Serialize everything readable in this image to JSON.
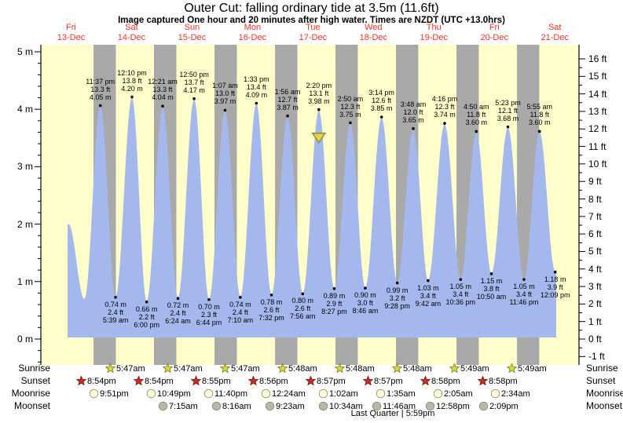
{
  "title": "Outer Cut: falling  ordinary tide at 3.5m (11.6ft)",
  "subtitle": "Image captured One hour and 20 minutes after high water. Times are NZDT (UTC +13.0hrs)",
  "day_labels": [
    {
      "name": "Fri",
      "date": "13-Dec"
    },
    {
      "name": "Sat",
      "date": "14-Dec"
    },
    {
      "name": "Sun",
      "date": "15-Dec"
    },
    {
      "name": "Mon",
      "date": "16-Dec"
    },
    {
      "name": "Tue",
      "date": "17-Dec"
    },
    {
      "name": "Wed",
      "date": "18-Dec"
    },
    {
      "name": "Thu",
      "date": "19-Dec"
    },
    {
      "name": "Fri",
      "date": "20-Dec"
    },
    {
      "name": "Sat",
      "date": "21-Dec"
    }
  ],
  "y_axis": {
    "left_ticks": [
      {
        "v": 5,
        "label": "5 m"
      },
      {
        "v": 4,
        "label": "4 m"
      },
      {
        "v": 3,
        "label": "3 m"
      },
      {
        "v": 2,
        "label": "2 m"
      },
      {
        "v": 1,
        "label": "1 m"
      },
      {
        "v": 0,
        "label": "0 m"
      }
    ],
    "right_ticks": [
      {
        "v": 16,
        "label": "16 ft"
      },
      {
        "v": 15,
        "label": "15 ft"
      },
      {
        "v": 14,
        "label": "14 ft"
      },
      {
        "v": 13,
        "label": "13 ft"
      },
      {
        "v": 12,
        "label": "12 ft"
      },
      {
        "v": 11,
        "label": "11 ft"
      },
      {
        "v": 10,
        "label": "10 ft"
      },
      {
        "v": 9,
        "label": "9 ft"
      },
      {
        "v": 8,
        "label": "8 ft"
      },
      {
        "v": 7,
        "label": "7 ft"
      },
      {
        "v": 6,
        "label": "6 ft"
      },
      {
        "v": 5,
        "label": "5 ft"
      },
      {
        "v": 4,
        "label": "4 ft"
      },
      {
        "v": 3,
        "label": "3 ft"
      },
      {
        "v": 2,
        "label": "2 ft"
      },
      {
        "v": 1,
        "label": "1 ft"
      },
      {
        "v": 0,
        "label": "0 ft"
      },
      {
        "v": -1,
        "label": "-1 ft"
      }
    ]
  },
  "chart_data": {
    "type": "area",
    "title": "Outer Cut: falling  ordinary tide at 3.5m (11.6ft)",
    "ylabel_left_unit": "m",
    "ylabel_right_unit": "ft",
    "ylim_m": [
      -0.45,
      5.1
    ],
    "x_range_days": 9,
    "high_tides": [
      {
        "day": 0,
        "time": "11:37 pm",
        "ft": "13.3",
        "m": "4.05"
      },
      {
        "day": 1,
        "time": "12:10 pm",
        "ft": "13.8",
        "m": "4.20"
      },
      {
        "day": 2,
        "time": "12:21 am",
        "ft": "13.3",
        "m": "4.04"
      },
      {
        "day": 2,
        "time": "12:50 pm",
        "ft": "13.7",
        "m": "4.17"
      },
      {
        "day": 3,
        "time": "1:07 am",
        "ft": "13.0",
        "m": "3.97"
      },
      {
        "day": 3,
        "time": "1:33 pm",
        "ft": "13.4",
        "m": "4.09"
      },
      {
        "day": 4,
        "time": "1:56 am",
        "ft": "12.7",
        "m": "3.87"
      },
      {
        "day": 4,
        "time": "2:20 pm",
        "ft": "13.1",
        "m": "3.98"
      },
      {
        "day": 5,
        "time": "2:50 am",
        "ft": "12.3",
        "m": "3.75"
      },
      {
        "day": 5,
        "time": "3:14 pm",
        "ft": "12.6",
        "m": "3.85"
      },
      {
        "day": 6,
        "time": "3:48 am",
        "ft": "12.0",
        "m": "3.65"
      },
      {
        "day": 6,
        "time": "4:16 pm",
        "ft": "12.3",
        "m": "3.74"
      },
      {
        "day": 7,
        "time": "4:50 am",
        "ft": "11.8",
        "m": "3.60"
      },
      {
        "day": 7,
        "time": "5:23 pm",
        "ft": "12.1",
        "m": "3.68"
      },
      {
        "day": 8,
        "time": "5:55 am",
        "ft": "11.8",
        "m": "3.60"
      }
    ],
    "low_tides": [
      {
        "day": 1,
        "time": "5:39 am",
        "ft": "2.4",
        "m": "0.74"
      },
      {
        "day": 1,
        "time": "6:00 pm",
        "ft": "2.2",
        "m": "0.66"
      },
      {
        "day": 2,
        "time": "6:24 am",
        "ft": "2.4",
        "m": "0.72"
      },
      {
        "day": 2,
        "time": "6:44 pm",
        "ft": "2.3",
        "m": "0.70"
      },
      {
        "day": 3,
        "time": "7:10 am",
        "ft": "2.4",
        "m": "0.74"
      },
      {
        "day": 3,
        "time": "7:32 pm",
        "ft": "2.6",
        "m": "0.78"
      },
      {
        "day": 4,
        "time": "7:56 am",
        "ft": "2.6",
        "m": "0.80"
      },
      {
        "day": 4,
        "time": "8:27 pm",
        "ft": "2.9",
        "m": "0.89"
      },
      {
        "day": 5,
        "time": "8:46 am",
        "ft": "3.0",
        "m": "0.90"
      },
      {
        "day": 5,
        "time": "9:28 pm",
        "ft": "3.2",
        "m": "0.99"
      },
      {
        "day": 6,
        "time": "9:42 am",
        "ft": "3.4",
        "m": "1.03"
      },
      {
        "day": 6,
        "time": "10:36 pm",
        "ft": "3.4",
        "m": "1.05"
      },
      {
        "day": 7,
        "time": "10:50 am",
        "ft": "3.8",
        "m": "1.15"
      },
      {
        "day": 7,
        "time": "11:46 pm",
        "ft": "3.4",
        "m": "1.05"
      },
      {
        "day": 8,
        "time": "12:09 pm",
        "ft": "3.9",
        "m": "1.18"
      }
    ],
    "current_marker": {
      "m": 3.5,
      "near_high_index": 7
    },
    "colors": {
      "day_bg": "#ffffcc",
      "night_bg": "#a9a9a9",
      "tide_fill": "#a5b8ee",
      "day_label_red": "#ff2d22",
      "marker_fill": "#e8d24a",
      "marker_stroke": "#8f8f2a",
      "sunrise_star": "#d9d93a",
      "sunset_star": "#cf2b25",
      "moonrise_circle": "#ffffd8",
      "moonset_circle": "#b8b8a8"
    }
  },
  "astro": {
    "rows": [
      {
        "id": "sunrise",
        "label": "Sunrise",
        "icon": "sunrise-star-icon",
        "times": [
          "5:47am",
          "5:47am",
          "5:47am",
          "5:48am",
          "5:48am",
          "5:48am",
          "5:49am",
          "5:49am"
        ]
      },
      {
        "id": "sunset",
        "label": "Sunset",
        "icon": "sunset-star-icon",
        "times": [
          "8:54pm",
          "8:54pm",
          "8:55pm",
          "8:56pm",
          "8:57pm",
          "8:57pm",
          "8:58pm",
          "8:58pm"
        ]
      },
      {
        "id": "moonrise",
        "label": "Moonrise",
        "icon": "moonrise-circle-icon",
        "times": [
          "9:51pm",
          "10:49pm",
          "11:40pm",
          "12:24am",
          "1:02am",
          "1:35am",
          "2:05am",
          "2:34am"
        ]
      },
      {
        "id": "moonset",
        "label": "Moonset",
        "icon": "moonset-circle-icon",
        "times": [
          "7:15am",
          "8:16am",
          "9:23am",
          "10:34am",
          "11:46am",
          "12:58pm",
          "2:09pm"
        ]
      }
    ],
    "moon_phase": "Last Quarter | 5:59pm"
  }
}
